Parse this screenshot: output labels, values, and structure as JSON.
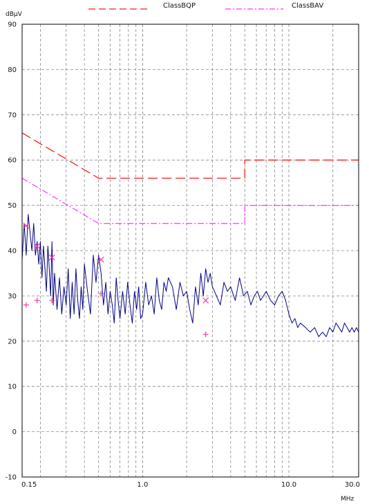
{
  "chart_data": {
    "type": "line",
    "x_scale": "log",
    "x_unit": "MHz",
    "y_unit": "dBµV",
    "xlim": [
      0.15,
      30.0
    ],
    "ylim": [
      -10,
      90
    ],
    "y_ticks": [
      "90",
      "80",
      "70",
      "60",
      "50",
      "40",
      "30",
      "20",
      "10",
      "0",
      "-10"
    ],
    "x_tick_labels": [
      "0.15",
      "1.0",
      "10.0",
      "30.0"
    ],
    "grid": true,
    "legend_position": "top",
    "colors": {
      "limit_qp": "#ff1a1a",
      "limit_av": "#ff33ff",
      "trace": "#000080",
      "markers": "#ff33aa",
      "grid": "#888888"
    },
    "series": [
      {
        "name": "ClassBQP",
        "x": [
          0.15,
          0.5,
          0.5,
          5.0,
          5.0,
          30.0
        ],
        "values": [
          66,
          56,
          56,
          56,
          60,
          60
        ]
      },
      {
        "name": "ClassBAV",
        "x": [
          0.15,
          0.5,
          0.5,
          5.0,
          5.0,
          30.0
        ],
        "values": [
          56,
          46,
          46,
          46,
          50,
          50
        ]
      },
      {
        "name": "",
        "x": [
          0.15,
          0.155,
          0.16,
          0.165,
          0.17,
          0.175,
          0.18,
          0.185,
          0.19,
          0.195,
          0.2,
          0.205,
          0.21,
          0.215,
          0.22,
          0.225,
          0.23,
          0.235,
          0.24,
          0.245,
          0.25,
          0.26,
          0.27,
          0.28,
          0.29,
          0.3,
          0.31,
          0.32,
          0.33,
          0.34,
          0.35,
          0.36,
          0.37,
          0.38,
          0.39,
          0.4,
          0.42,
          0.44,
          0.46,
          0.48,
          0.5,
          0.52,
          0.54,
          0.56,
          0.58,
          0.6,
          0.62,
          0.64,
          0.66,
          0.68,
          0.7,
          0.73,
          0.76,
          0.79,
          0.82,
          0.85,
          0.88,
          0.91,
          0.94,
          0.97,
          1.0,
          1.05,
          1.1,
          1.15,
          1.2,
          1.25,
          1.3,
          1.35,
          1.4,
          1.45,
          1.5,
          1.6,
          1.7,
          1.8,
          1.9,
          2.0,
          2.1,
          2.2,
          2.3,
          2.4,
          2.5,
          2.6,
          2.7,
          2.8,
          2.9,
          3.0,
          3.2,
          3.4,
          3.6,
          3.8,
          4.0,
          4.3,
          4.6,
          4.9,
          5.2,
          5.5,
          5.8,
          6.1,
          6.4,
          6.7,
          7.0,
          7.5,
          8.0,
          8.5,
          9.0,
          9.5,
          10.0,
          10.5,
          11.0,
          11.5,
          12.0,
          13.0,
          14.0,
          15.0,
          16.0,
          17.0,
          18.0,
          19.0,
          20.0,
          21.0,
          22.0,
          23.0,
          24.0,
          25.0,
          26.0,
          27.0,
          28.0,
          29.0,
          30.0
        ],
        "values": [
          38,
          46,
          39,
          48,
          44,
          40,
          46,
          39,
          42,
          37,
          42,
          34,
          41,
          36,
          31,
          41,
          36,
          30,
          42,
          28,
          35,
          27,
          34,
          26,
          32,
          28,
          36,
          25,
          33,
          26,
          36,
          29,
          25,
          32,
          27,
          37,
          31,
          26,
          39,
          33,
          39,
          35,
          28,
          33,
          26,
          31,
          28,
          24,
          34,
          29,
          25,
          31,
          26,
          33,
          28,
          24,
          31,
          27,
          32,
          25,
          26,
          33,
          28,
          30,
          26,
          34,
          29,
          27,
          33,
          31,
          34,
          32,
          27,
          33,
          30,
          31,
          27,
          24,
          32,
          28,
          35,
          30,
          36,
          33,
          35,
          32,
          30,
          28,
          33,
          31,
          32,
          29,
          34,
          30,
          31,
          28,
          30,
          31,
          29,
          30,
          31,
          29,
          28,
          30,
          31,
          29,
          26,
          24,
          25,
          23,
          24,
          23,
          22,
          23,
          21,
          22,
          21,
          23,
          22,
          24,
          23,
          22,
          24,
          23,
          22,
          23,
          22,
          23,
          22
        ]
      }
    ],
    "markers": {
      "qp": {
        "x": [
          0.16,
          0.19,
          0.24,
          0.52,
          2.7
        ],
        "values": [
          45.5,
          41,
          38.5,
          38,
          29
        ]
      },
      "av": {
        "x": [
          0.16,
          0.19,
          0.24,
          0.52,
          2.7
        ],
        "values": [
          28,
          29,
          29,
          30.5,
          21.5
        ]
      }
    }
  }
}
